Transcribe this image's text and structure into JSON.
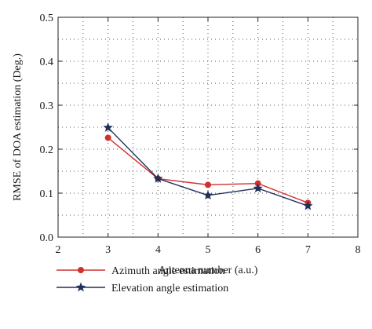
{
  "chart_data": {
    "type": "line",
    "xlabel": "Antenna number (a.u.)",
    "ylabel": "RMSE of DOA estimation (Deg.)",
    "xlim": [
      2,
      8
    ],
    "ylim": [
      0,
      0.5
    ],
    "xticks": [
      "2",
      "3",
      "4",
      "5",
      "6",
      "7",
      "8"
    ],
    "yticks": [
      "0.0",
      "0.1",
      "0.2",
      "0.3",
      "0.4",
      "0.5"
    ],
    "grid": true,
    "legend_position": "bottom-left, below plot",
    "x": [
      3,
      4,
      5,
      6,
      7
    ],
    "series": [
      {
        "name": "Azimuth angle estimation",
        "values": [
          0.226,
          0.133,
          0.119,
          0.122,
          0.078
        ],
        "color": "#d0312d",
        "marker": "circle"
      },
      {
        "name": "Elevation angle estimation",
        "values": [
          0.249,
          0.133,
          0.095,
          0.111,
          0.071
        ],
        "color": "#1f2f5a",
        "marker": "star"
      }
    ]
  }
}
